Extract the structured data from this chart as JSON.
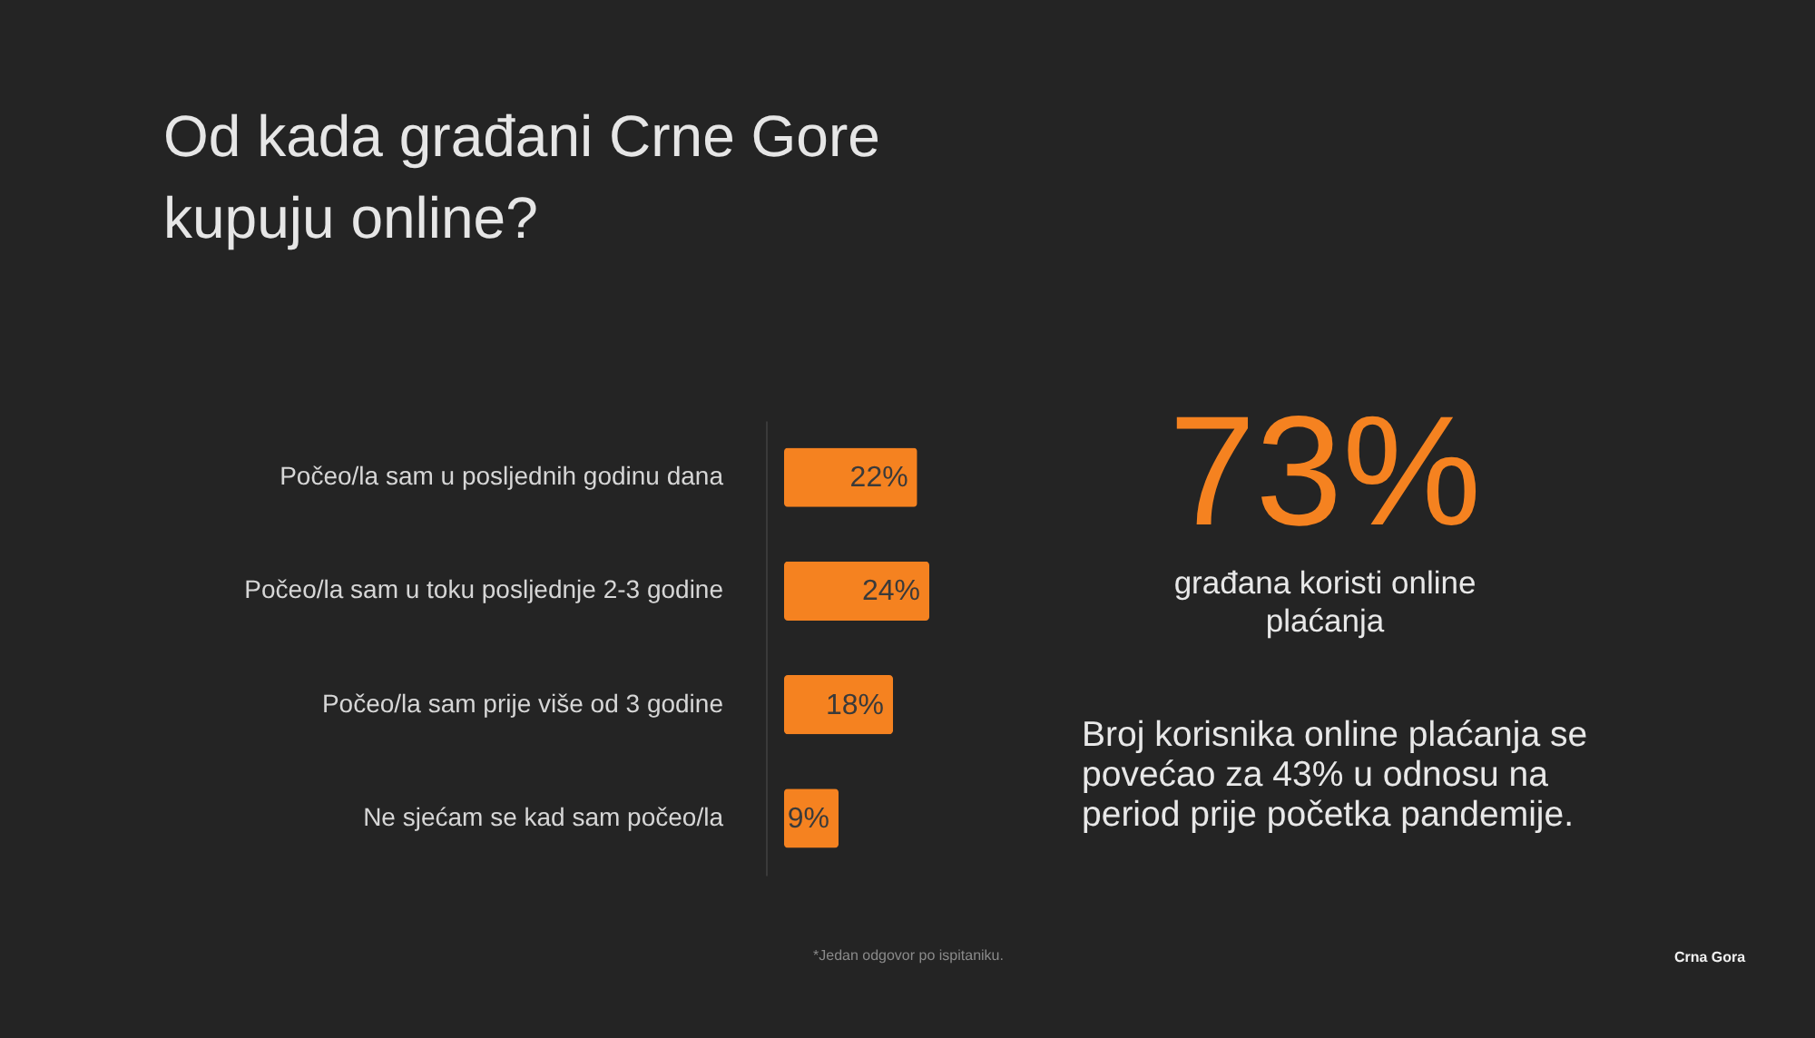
{
  "chart_data": {
    "type": "bar",
    "orientation": "horizontal",
    "title": "Od kada građani Crne Gore\nkupuju online?",
    "categories": [
      "Počeo/la sam u posljednih godinu dana",
      "Počeo/la sam u toku posljednje 2-3 godine",
      "Počeo/la sam prije više od 3 godine",
      "Ne sjećam se kad sam počeo/la"
    ],
    "values": [
      22,
      24,
      18,
      9
    ],
    "value_labels": [
      "22%",
      "24%",
      "18%",
      "9%"
    ],
    "color": "#f58220",
    "annotations": [
      "73%",
      "građana koristi online\nplaćanja",
      "Broj korisnika online plaćanja se\npovećao za 43% u odnosu na\nperiod prije početka pandemije.",
      "*Jedan odgovor po ispitaniku.",
      "Crna Gora"
    ]
  }
}
